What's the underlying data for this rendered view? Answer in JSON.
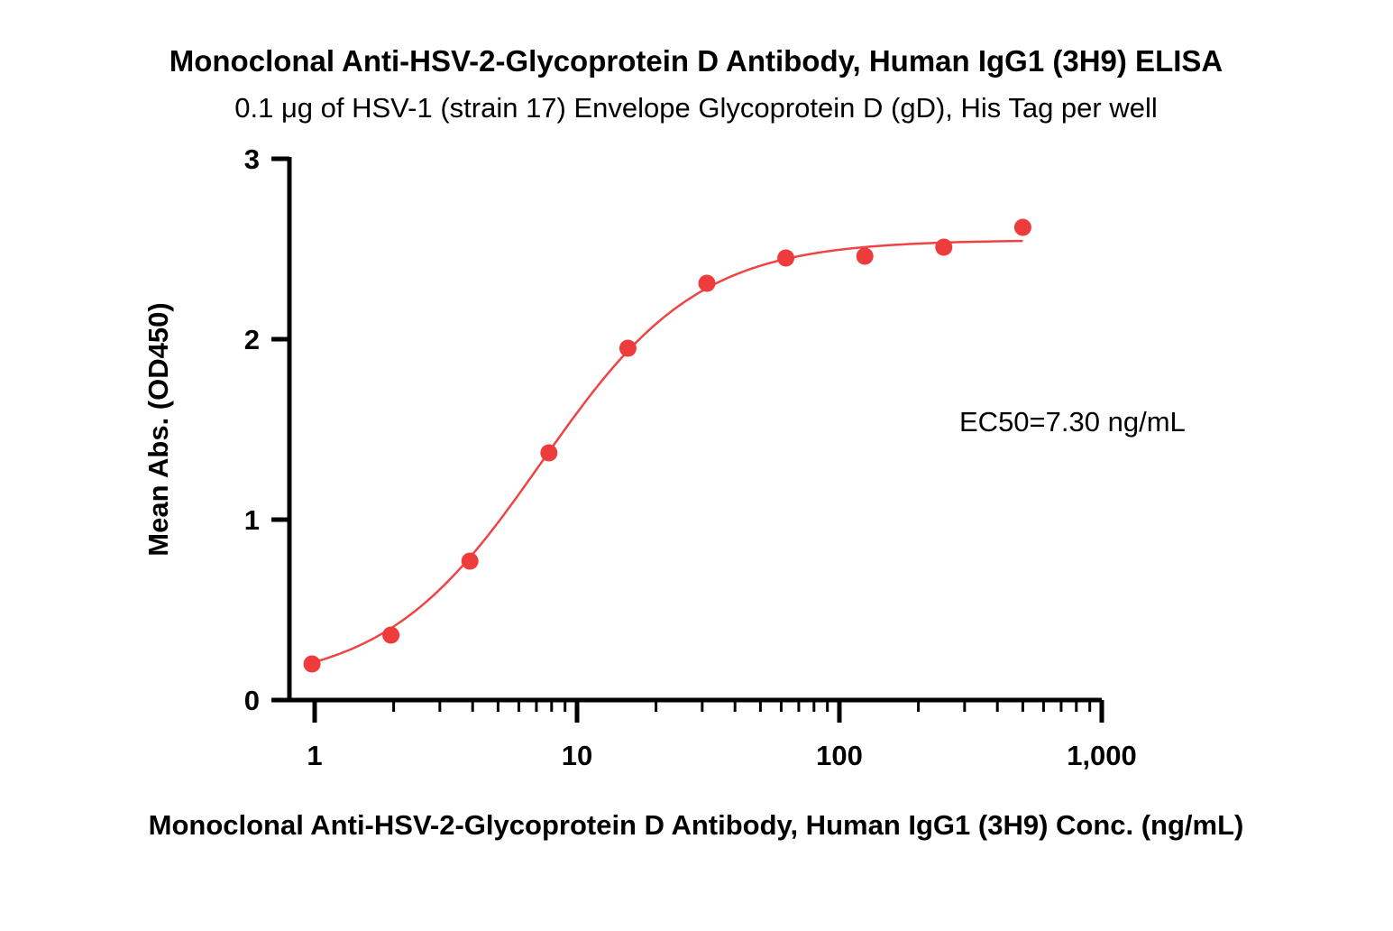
{
  "chart_data": {
    "type": "scatter",
    "title": "Monoclonal Anti-HSV-2-Glycoprotein D Antibody, Human IgG1 (3H9) ELISA",
    "subtitle": "0.1 μg of HSV-1 (strain 17) Envelope Glycoprotein D (gD), His Tag per well",
    "xlabel": "Monoclonal Anti-HSV-2-Glycoprotein D Antibody, Human IgG1 (3H9) Conc. (ng/mL)",
    "ylabel": "Mean Abs. (OD450)",
    "xscale": "log",
    "xlim": [
      0.8,
      1000
    ],
    "ylim": [
      0,
      3
    ],
    "x_ticks": [
      {
        "value": 1,
        "label": "1"
      },
      {
        "value": 10,
        "label": "10"
      },
      {
        "value": 100,
        "label": "100"
      },
      {
        "value": 1000,
        "label": "1,000"
      }
    ],
    "y_ticks": [
      {
        "value": 0,
        "label": "0"
      },
      {
        "value": 1,
        "label": "1"
      },
      {
        "value": 2,
        "label": "2"
      },
      {
        "value": 3,
        "label": "3"
      }
    ],
    "color": "#ee3b3b",
    "points": [
      {
        "x": 0.977,
        "y": 0.2
      },
      {
        "x": 1.953,
        "y": 0.36
      },
      {
        "x": 3.906,
        "y": 0.77
      },
      {
        "x": 7.813,
        "y": 1.37
      },
      {
        "x": 15.625,
        "y": 1.95
      },
      {
        "x": 31.25,
        "y": 2.31
      },
      {
        "x": 62.5,
        "y": 2.45
      },
      {
        "x": 125,
        "y": 2.46
      },
      {
        "x": 250,
        "y": 2.51
      },
      {
        "x": 500,
        "y": 2.62
      }
    ],
    "fit": {
      "model": "4PL",
      "bottom": 0.08,
      "top": 2.55,
      "ec50": 7.3,
      "hill": 1.45,
      "x_range": [
        0.977,
        500
      ]
    },
    "annotation": "EC50=7.30 ng/mL",
    "grid": false,
    "legend": "none"
  }
}
